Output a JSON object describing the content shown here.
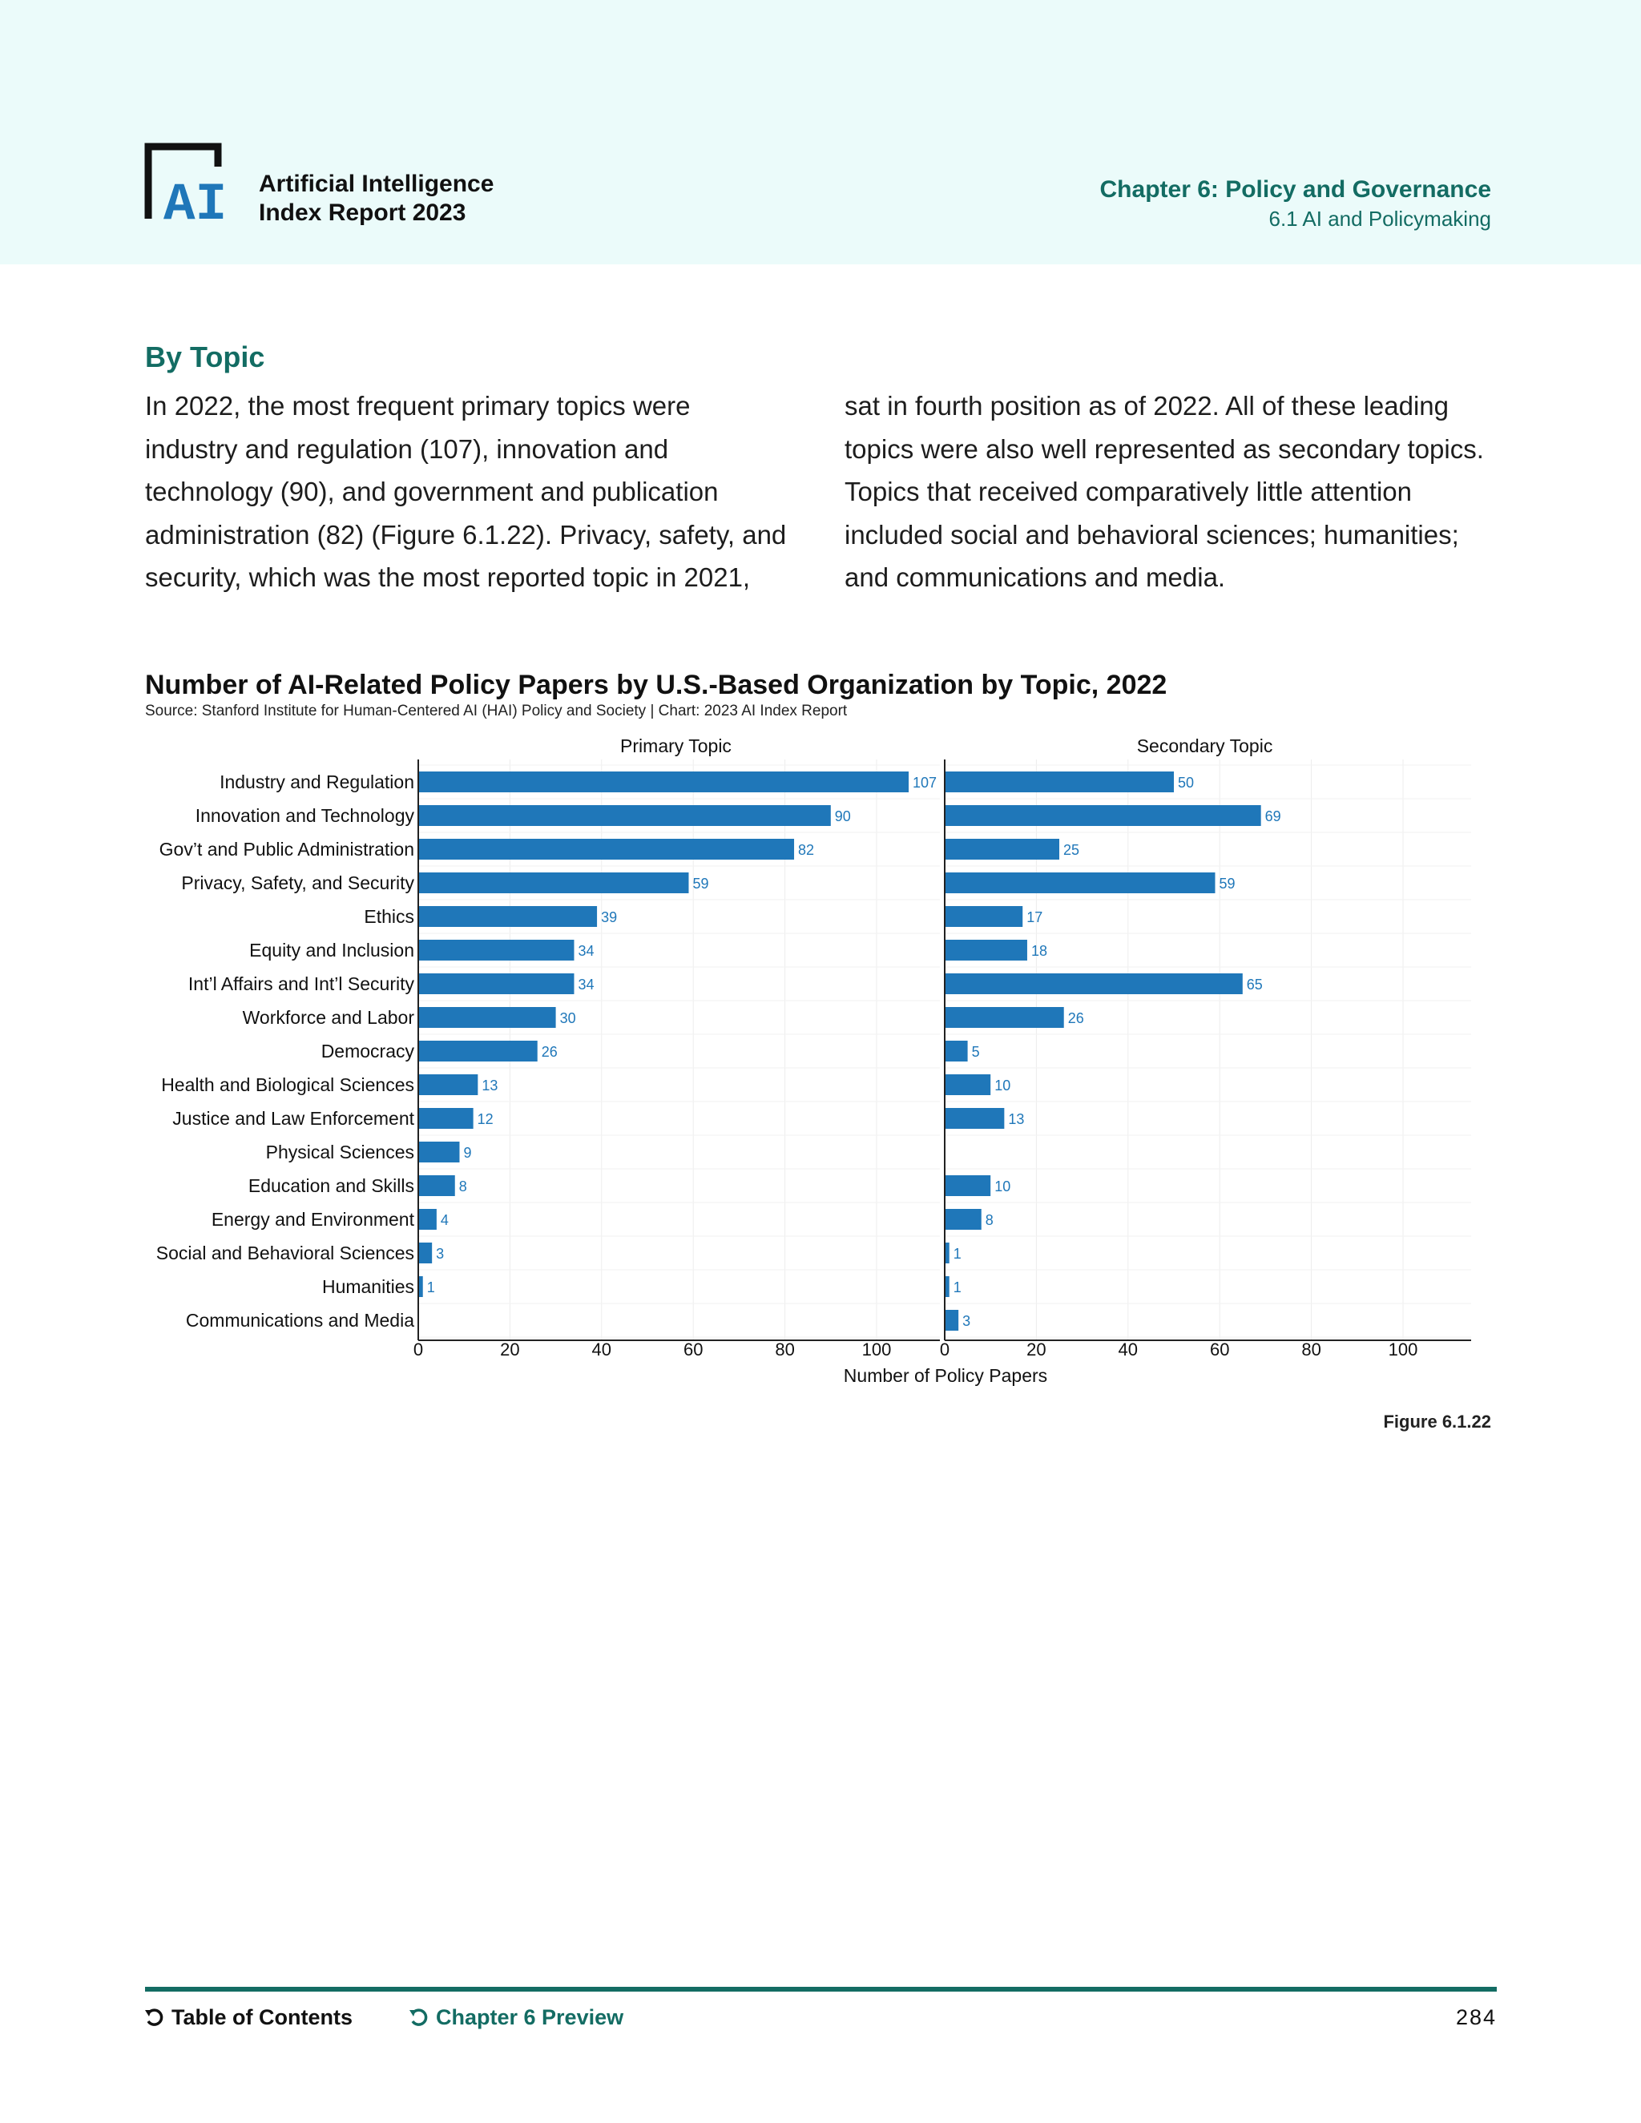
{
  "header": {
    "logo_text": "AI",
    "report_title_line1": "Artificial Intelligence",
    "report_title_line2": "Index Report 2023",
    "chapter_title": "Chapter 6: Policy and Governance",
    "chapter_subtitle": "6.1 AI and Policymaking"
  },
  "section": {
    "heading": "By Topic",
    "col1_lines": [
      "In 2022, the most frequent primary topics were",
      "industry and regulation (107), innovation and",
      "technology (90), and government and publication",
      "administration (82) (Figure 6.1.22). Privacy, safety, and",
      "security, which was the most reported topic in 2021,"
    ],
    "col2_lines": [
      "sat in fourth position as of 2022. All of these leading",
      "topics were also well represented as secondary topics.",
      "Topics that received comparatively little attention",
      "included social and behavioral sciences; humanities;",
      "and communications and media."
    ]
  },
  "chart_data": {
    "type": "bar",
    "orientation": "horizontal",
    "title": "Number of AI-Related Policy Papers by U.S.-Based Organization by Topic, 2022",
    "source": "Source: Stanford Institute for Human-Centered AI (HAI) Policy and Society | Chart: 2023 AI Index Report",
    "xlabel": "Number of Policy Papers",
    "xlim": [
      0,
      115
    ],
    "xticks": [
      0,
      20,
      40,
      60,
      80,
      100
    ],
    "bar_color": "#1f77b9",
    "grid": true,
    "categories": [
      "Industry and Regulation",
      "Innovation and Technology",
      "Gov’t and Public Administration",
      "Privacy, Safety, and Security",
      "Ethics",
      "Equity and Inclusion",
      "Int’l Affairs and Int’l Security",
      "Workforce and Labor",
      "Democracy",
      "Health and Biological Sciences",
      "Justice and Law Enforcement",
      "Physical Sciences",
      "Education and Skills",
      "Energy and Environment",
      "Social and Behavioral Sciences",
      "Humanities",
      "Communications and Media"
    ],
    "series": [
      {
        "name": "Primary Topic",
        "values": [
          107,
          90,
          82,
          59,
          39,
          34,
          34,
          30,
          26,
          13,
          12,
          9,
          8,
          4,
          3,
          1,
          null
        ]
      },
      {
        "name": "Secondary Topic",
        "values": [
          50,
          69,
          25,
          59,
          17,
          18,
          65,
          26,
          5,
          10,
          13,
          null,
          10,
          8,
          1,
          1,
          3
        ]
      }
    ]
  },
  "figure_label": "Figure 6.1.22",
  "footer": {
    "toc_label": "Table of Contents",
    "preview_label": "Chapter 6 Preview",
    "page_number": "284"
  }
}
